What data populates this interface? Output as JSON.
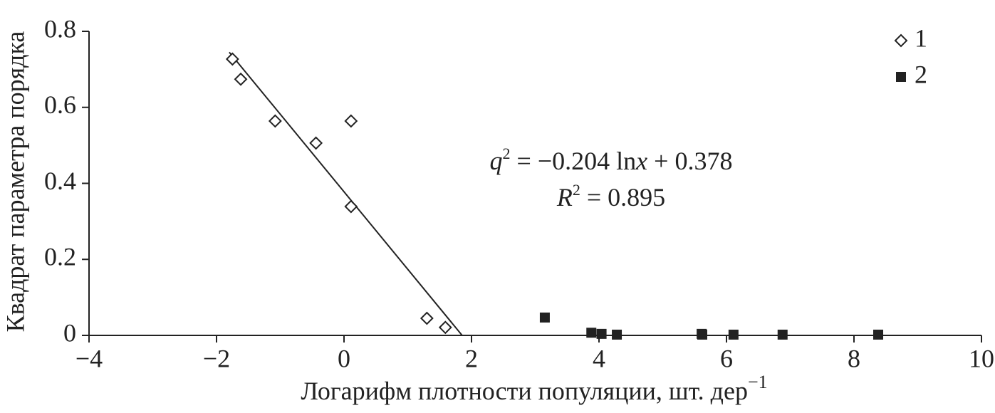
{
  "chart_data": {
    "type": "scatter",
    "x_label": "Логарифм плотности популяции, шт. дер",
    "x_label_sup": "−1",
    "y_label": "Квадрат параметра порядка",
    "equation": [
      "q",
      "2",
      " = −0.204 ln",
      "x",
      " + 0.378"
    ],
    "r_squared": [
      "R",
      "2",
      " = 0.895"
    ],
    "xlim": [
      -4,
      10
    ],
    "ylim": [
      0,
      0.8
    ],
    "xticks": [
      {
        "value": -4,
        "label": "−4"
      },
      {
        "value": -2,
        "label": "−2"
      },
      0,
      2,
      4,
      6,
      8,
      10
    ],
    "yticks": [
      0,
      0.2,
      0.4,
      0.6,
      0.8
    ],
    "legend": "top-right",
    "series": [
      {
        "name": "1",
        "color": "#222222",
        "marker": "diamond",
        "x": [
          -1.75,
          -1.62,
          -1.08,
          -0.44,
          0.11,
          0.11,
          1.3,
          1.59
        ],
        "values": [
          0.727,
          0.674,
          0.564,
          0.506,
          0.564,
          0.339,
          0.045,
          0.021
        ]
      },
      {
        "name": "2",
        "color": "#222222",
        "marker": "square",
        "x": [
          3.15,
          3.88,
          4.04,
          4.28,
          5.61,
          5.62,
          6.11,
          6.88,
          8.38
        ],
        "values": [
          0.047,
          0.007,
          0.004,
          0.002,
          0.004,
          0.002,
          0.002,
          0.002,
          0.002
        ]
      }
    ],
    "trendline": {
      "x": [
        -1.8,
        1.853
      ],
      "y": [
        0.745,
        0
      ]
    }
  }
}
